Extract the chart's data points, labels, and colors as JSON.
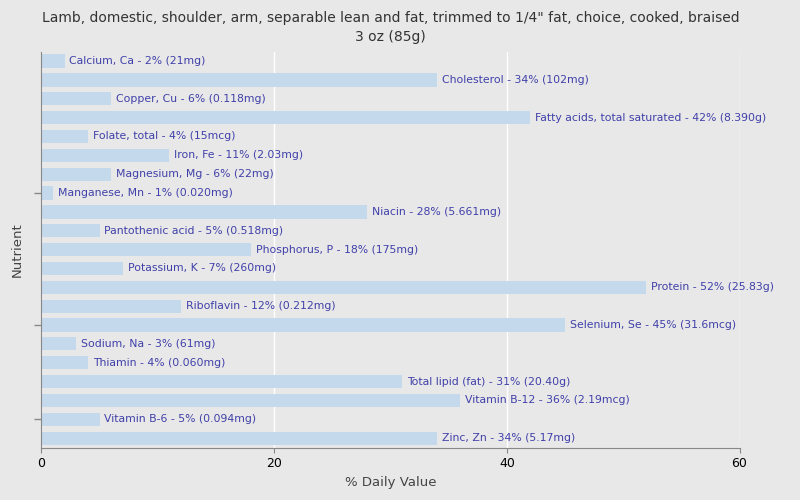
{
  "title": "Lamb, domestic, shoulder, arm, separable lean and fat, trimmed to 1/4\" fat, choice, cooked, braised\n3 oz (85g)",
  "xlabel": "% Daily Value",
  "ylabel": "Nutrient",
  "nutrients": [
    "Calcium, Ca - 2% (21mg)",
    "Cholesterol - 34% (102mg)",
    "Copper, Cu - 6% (0.118mg)",
    "Fatty acids, total saturated - 42% (8.390g)",
    "Folate, total - 4% (15mcg)",
    "Iron, Fe - 11% (2.03mg)",
    "Magnesium, Mg - 6% (22mg)",
    "Manganese, Mn - 1% (0.020mg)",
    "Niacin - 28% (5.661mg)",
    "Pantothenic acid - 5% (0.518mg)",
    "Phosphorus, P - 18% (175mg)",
    "Potassium, K - 7% (260mg)",
    "Protein - 52% (25.83g)",
    "Riboflavin - 12% (0.212mg)",
    "Selenium, Se - 45% (31.6mcg)",
    "Sodium, Na - 3% (61mg)",
    "Thiamin - 4% (0.060mg)",
    "Total lipid (fat) - 31% (20.40g)",
    "Vitamin B-12 - 36% (2.19mcg)",
    "Vitamin B-6 - 5% (0.094mg)",
    "Zinc, Zn - 34% (5.17mg)"
  ],
  "values": [
    2,
    34,
    6,
    42,
    4,
    11,
    6,
    1,
    28,
    5,
    18,
    7,
    52,
    12,
    45,
    3,
    4,
    31,
    36,
    5,
    34
  ],
  "bar_color": "#c5d9ed",
  "text_color": "#4040aa",
  "background_color": "#e8e8e8",
  "plot_background": "#e8e8e8",
  "xlim": [
    0,
    60
  ],
  "title_fontsize": 10,
  "label_fontsize": 7.8,
  "tick_fontsize": 9,
  "bar_height": 0.7,
  "ytick_positions": [
    1,
    6,
    13
  ],
  "ytick_labels": [
    "",
    "",
    ""
  ]
}
